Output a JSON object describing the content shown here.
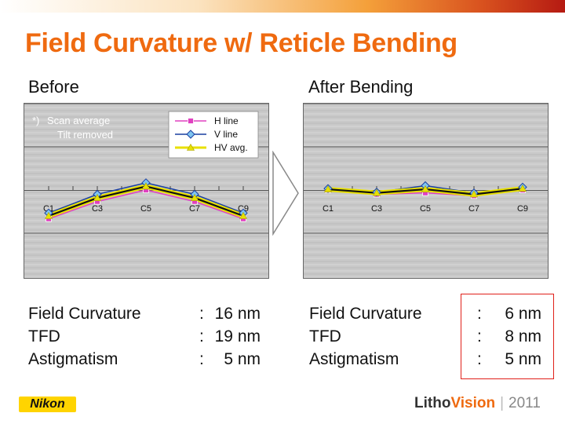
{
  "title": "Field Curvature w/ Reticle Bending",
  "branding": {
    "company": "Nikon",
    "event_part1": "Litho",
    "event_part2": "Vision",
    "year": "2011"
  },
  "colors": {
    "title": "#ef6a10",
    "h_line": "#e040c0",
    "v_line": "#1a3fa0",
    "hv_avg": "#e8e000",
    "highlight_box": "#e0201a"
  },
  "before": {
    "heading": "Before",
    "note_marker": "*)",
    "note_line1": "Scan average",
    "note_line2": "Tilt removed",
    "stats": [
      {
        "label": "Field Curvature",
        "colon": ":",
        "value": "16 nm"
      },
      {
        "label": "TFD",
        "colon": ":",
        "value": "19 nm"
      },
      {
        "label": "Astigmatism",
        "colon": ":",
        "value": "5 nm"
      }
    ]
  },
  "after": {
    "heading": "After Bending",
    "stats": [
      {
        "label": "Field Curvature",
        "colon": ":",
        "value": "6 nm"
      },
      {
        "label": "TFD",
        "colon": ":",
        "value": "8 nm"
      },
      {
        "label": "Astigmatism",
        "colon": ":",
        "value": "5 nm"
      }
    ]
  },
  "chart_data": [
    {
      "type": "line",
      "title": "Before",
      "categories": [
        "C1",
        "C3",
        "C5",
        "C7",
        "C9"
      ],
      "ylim": [
        -30,
        30
      ],
      "legend_placement": "top-right",
      "series": [
        {
          "name": "H line",
          "values": [
            -20,
            -8,
            0,
            -8,
            -20
          ]
        },
        {
          "name": "V line",
          "values": [
            -16,
            -3,
            5,
            -3,
            -16
          ]
        },
        {
          "name": "HV avg.",
          "values": [
            -18,
            -5.5,
            2.5,
            -5.5,
            -18
          ]
        }
      ]
    },
    {
      "type": "line",
      "title": "After Bending",
      "categories": [
        "C1",
        "C3",
        "C5",
        "C7",
        "C9"
      ],
      "ylim": [
        -30,
        30
      ],
      "series": [
        {
          "name": "H line",
          "values": [
            0,
            -3,
            -2,
            -4,
            0
          ]
        },
        {
          "name": "V line",
          "values": [
            1,
            -1.5,
            3,
            -2,
            2
          ]
        },
        {
          "name": "HV avg.",
          "values": [
            0.5,
            -2,
            0.5,
            -3,
            1
          ]
        }
      ]
    }
  ]
}
